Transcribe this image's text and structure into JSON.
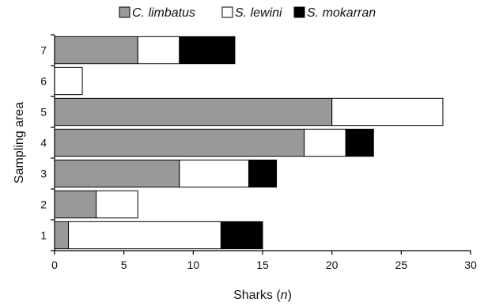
{
  "chart_data": {
    "type": "bar",
    "orientation": "horizontal",
    "stacked": true,
    "categories": [
      "1",
      "2",
      "3",
      "4",
      "5",
      "6",
      "7"
    ],
    "series": [
      {
        "name": "C. limbatus",
        "color": "#999999",
        "values": [
          1,
          3,
          9,
          18,
          20,
          0,
          6
        ]
      },
      {
        "name": "S. lewini",
        "color": "#ffffff",
        "values": [
          11,
          3,
          5,
          3,
          8,
          2,
          3
        ]
      },
      {
        "name": "S. mokarran",
        "color": "#000000",
        "values": [
          3,
          0,
          2,
          2,
          0,
          0,
          4
        ]
      }
    ],
    "xlabel": "Sharks (n)",
    "xlabel_main": "Sharks (",
    "xlabel_var": "n",
    "xlabel_end": ")",
    "ylabel": "Sampling area",
    "xlim": [
      0,
      30
    ],
    "xticks": [
      0,
      5,
      10,
      15,
      20,
      25,
      30
    ],
    "xtick_labels": [
      "0",
      "5",
      "10",
      "15",
      "20",
      "25",
      "30"
    ],
    "grid": false,
    "legend_position": "top"
  }
}
